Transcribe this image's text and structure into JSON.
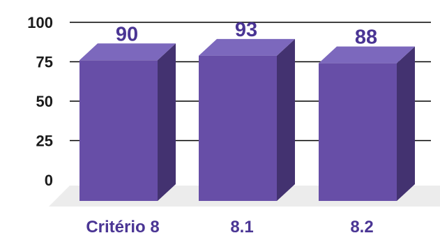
{
  "chart_data": {
    "type": "bar",
    "title": "",
    "xlabel": "",
    "ylabel": "",
    "categories": [
      "Critério 8",
      "8.1",
      "8.2"
    ],
    "values": [
      90,
      93,
      88
    ],
    "y_ticks": [
      "0",
      "25",
      "50",
      "75",
      "100"
    ],
    "ylim": [
      0,
      100
    ],
    "grid": true,
    "legend": "none",
    "colors": {
      "bar_front": "#674ea7",
      "bar_top": "#7c68bd",
      "bar_side": "#433270",
      "label_text": "#4a3594",
      "floor": "#ececec",
      "grid": "#000000"
    }
  }
}
